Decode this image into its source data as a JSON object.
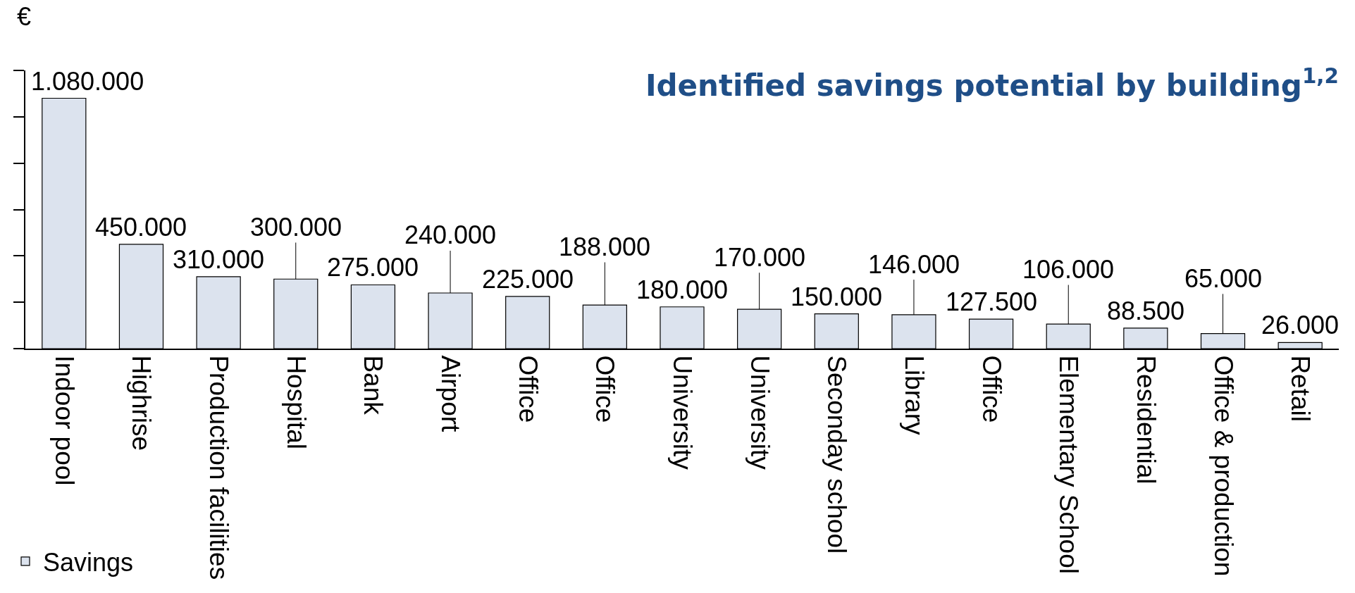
{
  "chart_data": {
    "type": "bar",
    "title": "Identified savings potential by building$^{1,2}$",
    "ylabel": "€",
    "categories": [
      "Indoor pool",
      "Highrise",
      "Production facilities",
      "Hospital",
      "Bank",
      "Airport",
      "Office",
      "Office",
      "University",
      "University",
      "Seconday school",
      "Library",
      "Office",
      "Elementary School",
      "Residential",
      "Office & production",
      "Retail"
    ],
    "series": [
      {
        "name": "Savings",
        "color": "#dce3ee",
        "values": [
          1080000,
          450000,
          310000,
          300000,
          275000,
          240000,
          225000,
          188000,
          180000,
          170000,
          150000,
          146000,
          127500,
          106000,
          88500,
          65000,
          26000
        ],
        "value_labels": [
          "1.080.000",
          "450.000",
          "310.000",
          "300.000",
          "275.000",
          "240.000",
          "225.000",
          "188.000",
          "180.000",
          "170.000",
          "150.000",
          "146.000",
          "127.500",
          "106.000",
          "88.500",
          "65.000",
          "26.000"
        ]
      }
    ],
    "ylim": [
      0,
      1200000
    ],
    "yticks": [
      {
        "value": 0,
        "label": null
      },
      {
        "value": 200000,
        "label": null
      },
      {
        "value": 400000,
        "label": null
      },
      {
        "value": 600000,
        "label": null
      },
      {
        "value": 800000,
        "label": null
      },
      {
        "value": 1000000,
        "label": null
      },
      {
        "value": 1200000,
        "label": null
      }
    ],
    "tick_labels": "x",
    "legend": "bottom left"
  }
}
